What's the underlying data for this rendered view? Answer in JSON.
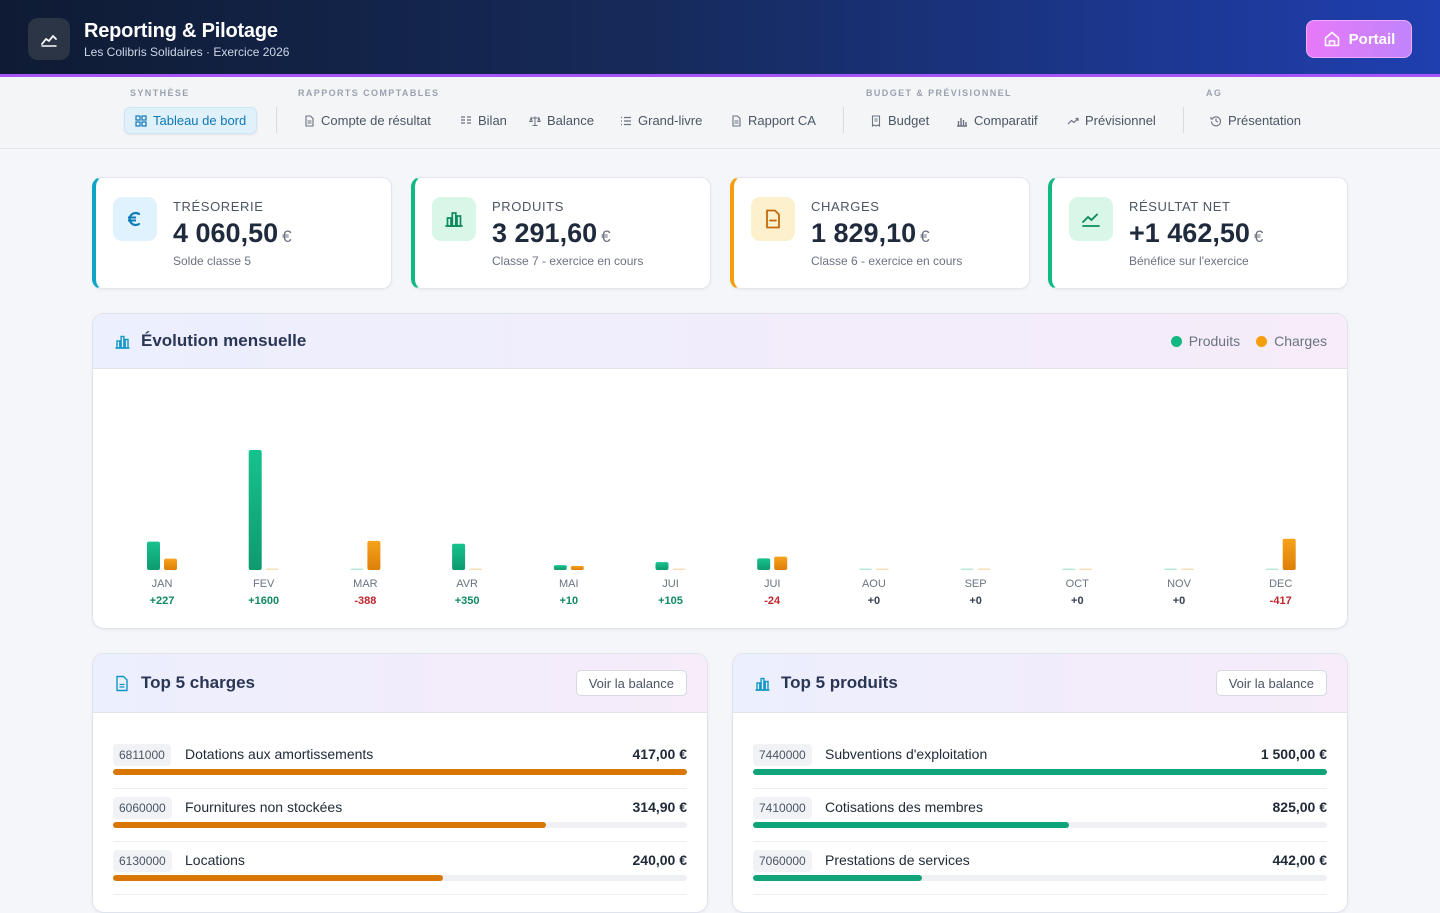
{
  "header": {
    "title": "Reporting & Pilotage",
    "subtitle": "Les Colibris Solidaires · Exercice 2026",
    "portal_label": "Portail"
  },
  "nav": {
    "groups": [
      {
        "label": "SYNTHÈSE"
      },
      {
        "label": "RAPPORTS COMPTABLES"
      },
      {
        "label": "BUDGET & PRÉVISIONNEL"
      },
      {
        "label": "AG"
      }
    ],
    "items": [
      {
        "label": "Tableau de bord",
        "icon": "grid-icon"
      },
      {
        "label": "Compte de résultat",
        "icon": "document-icon"
      },
      {
        "label": "Bilan",
        "icon": "columns-icon"
      },
      {
        "label": "Balance",
        "icon": "scale-icon"
      },
      {
        "label": "Grand-livre",
        "icon": "list-icon"
      },
      {
        "label": "Rapport CA",
        "icon": "document-icon"
      },
      {
        "label": "Budget",
        "icon": "receipt-icon"
      },
      {
        "label": "Comparatif",
        "icon": "bar-chart-icon"
      },
      {
        "label": "Prévisionnel",
        "icon": "trend-icon"
      },
      {
        "label": "Présentation",
        "icon": "history-icon"
      }
    ]
  },
  "kpis": [
    {
      "label": "TRÉSORERIE",
      "value": "4 060,50",
      "currency": "€",
      "sub": "Solde classe 5",
      "color": "#0ea5c4"
    },
    {
      "label": "PRODUITS",
      "value": "3 291,60",
      "currency": "€",
      "sub": "Classe 7 - exercice en cours",
      "color": "#10b981"
    },
    {
      "label": "CHARGES",
      "value": "1 829,10",
      "currency": "€",
      "sub": "Classe 6 - exercice en cours",
      "color": "#f59e0b"
    },
    {
      "label": "RÉSULTAT NET",
      "value": "+1 462,50",
      "currency": "€",
      "sub": "Bénéfice sur l'exercice",
      "color": "#10b981"
    }
  ],
  "evolution": {
    "title": "Évolution mensuelle",
    "legend": [
      {
        "name": "Produits",
        "color": "#10b981"
      },
      {
        "name": "Charges",
        "color": "#f59e0b"
      }
    ]
  },
  "chart_data": {
    "type": "bar",
    "categories": [
      "JAN",
      "FEV",
      "MAR",
      "AVR",
      "MAI",
      "JUI",
      "JUI",
      "AOU",
      "SEP",
      "OCT",
      "NOV",
      "DEC"
    ],
    "series": [
      {
        "name": "Produits",
        "values": [
          379,
          1600,
          0,
          350,
          65,
          105,
          155,
          0,
          0,
          0,
          0,
          0
        ]
      },
      {
        "name": "Charges",
        "values": [
          152,
          0,
          388,
          0,
          55,
          0,
          179,
          0,
          0,
          0,
          0,
          417
        ]
      }
    ],
    "net_labels": [
      "+227",
      "+1600",
      "-388",
      "+350",
      "+10",
      "+105",
      "-24",
      "+0",
      "+0",
      "+0",
      "+0",
      "-417"
    ],
    "ylim": [
      0,
      1600
    ],
    "legend_position": "top-right",
    "grid": false
  },
  "top_charges": {
    "title": "Top 5 charges",
    "button": "Voir la balance",
    "color": "#d97706",
    "max": 417,
    "rows": [
      {
        "account": "6811000",
        "label": "Dotations aux amortissements",
        "amount": "417,00 €",
        "value": 417
      },
      {
        "account": "6060000",
        "label": "Fournitures non stockées",
        "amount": "314,90 €",
        "value": 314.9
      },
      {
        "account": "6130000",
        "label": "Locations",
        "amount": "240,00 €",
        "value": 240
      }
    ]
  },
  "top_produits": {
    "title": "Top 5 produits",
    "button": "Voir la balance",
    "color": "#10a47a",
    "max": 1500,
    "rows": [
      {
        "account": "7440000",
        "label": "Subventions d'exploitation",
        "amount": "1 500,00 €",
        "value": 1500
      },
      {
        "account": "7410000",
        "label": "Cotisations des membres",
        "amount": "825,00 €",
        "value": 825
      },
      {
        "account": "7060000",
        "label": "Prestations de services",
        "amount": "442,00 €",
        "value": 442
      }
    ]
  }
}
